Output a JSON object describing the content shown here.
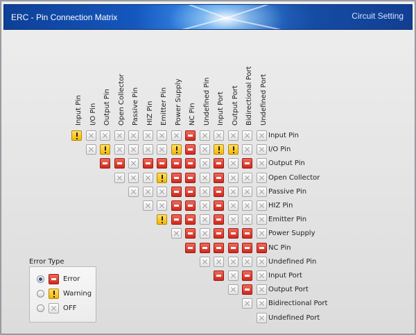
{
  "window": {
    "title": "ERC - Pin Connection Matrix",
    "subtitle": "Circuit Setting"
  },
  "pins": [
    "Input Pin",
    "I/O Pin",
    "Output Pin",
    "Open Collector",
    "Passive Pin",
    "HIZ Pin",
    "Emitter Pin",
    "Power Supply",
    "NC Pin",
    "Undefined Pin",
    "Input Port",
    "Output Port",
    "Bidirectional Port",
    "Undefined Port"
  ],
  "matrix": [
    [
      "warning",
      "off",
      "off",
      "off",
      "off",
      "off",
      "off",
      "off",
      "error",
      "off",
      "off",
      "off",
      "off",
      "off"
    ],
    [
      "off",
      "warning",
      "off",
      "off",
      "off",
      "off",
      "warning",
      "error",
      "off",
      "warning",
      "warning",
      "off",
      "off"
    ],
    [
      "error",
      "error",
      "off",
      "error",
      "error",
      "error",
      "error",
      "off",
      "error",
      "off",
      "error",
      "off"
    ],
    [
      "off",
      "off",
      "off",
      "warning",
      "error",
      "error",
      "off",
      "error",
      "off",
      "off",
      "off"
    ],
    [
      "off",
      "off",
      "off",
      "error",
      "error",
      "off",
      "error",
      "off",
      "off",
      "off"
    ],
    [
      "off",
      "off",
      "error",
      "error",
      "off",
      "error",
      "off",
      "off",
      "off"
    ],
    [
      "warning",
      "error",
      "error",
      "off",
      "error",
      "off",
      "off",
      "off"
    ],
    [
      "off",
      "error",
      "off",
      "error",
      "error",
      "error",
      "off"
    ],
    [
      "error",
      "error",
      "error",
      "error",
      "error",
      "error"
    ],
    [
      "off",
      "off",
      "off",
      "off",
      "off"
    ],
    [
      "error",
      "off",
      "error",
      "off"
    ],
    [
      "off",
      "error",
      "off"
    ],
    [
      "off",
      "off"
    ],
    [
      "off"
    ]
  ],
  "legend": {
    "title": "Error Type",
    "items": [
      {
        "label": "Error",
        "type": "error",
        "selected": true
      },
      {
        "label": "Warning",
        "type": "warning",
        "selected": false
      },
      {
        "label": "OFF",
        "type": "off",
        "selected": false
      }
    ]
  }
}
